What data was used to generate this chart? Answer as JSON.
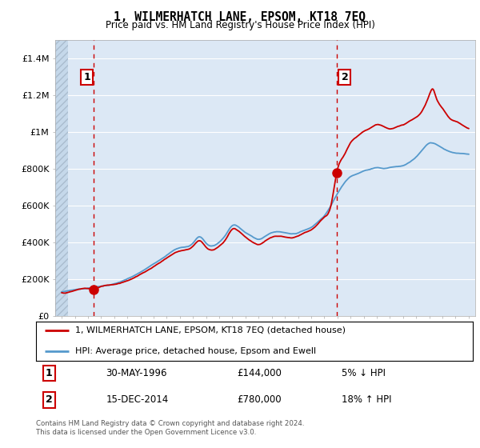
{
  "title": "1, WILMERHATCH LANE, EPSOM, KT18 7EQ",
  "subtitle": "Price paid vs. HM Land Registry's House Price Index (HPI)",
  "sale1_date": "30-MAY-1996",
  "sale1_price": 144000,
  "sale1_pct": "5% ↓ HPI",
  "sale2_date": "15-DEC-2014",
  "sale2_price": 780000,
  "sale2_pct": "18% ↑ HPI",
  "legend_line1": "1, WILMERHATCH LANE, EPSOM, KT18 7EQ (detached house)",
  "legend_line2": "HPI: Average price, detached house, Epsom and Ewell",
  "footer": "Contains HM Land Registry data © Crown copyright and database right 2024.\nThis data is licensed under the Open Government Licence v3.0.",
  "price_line_color": "#cc0000",
  "hpi_line_color": "#5599cc",
  "background_plot": "#dce8f5",
  "dashed_line_color": "#cc0000",
  "grid_color": "#c0cfe0",
  "ylim": [
    0,
    1500000
  ],
  "yticks": [
    0,
    200000,
    400000,
    600000,
    800000,
    1000000,
    1200000,
    1400000
  ],
  "ytick_labels": [
    "£0",
    "£200K",
    "£400K",
    "£600K",
    "£800K",
    "£1M",
    "£1.2M",
    "£1.4M"
  ],
  "xstart": 1994,
  "xend": 2025,
  "sale1_year": 1996.42,
  "sale2_year": 2014.96
}
